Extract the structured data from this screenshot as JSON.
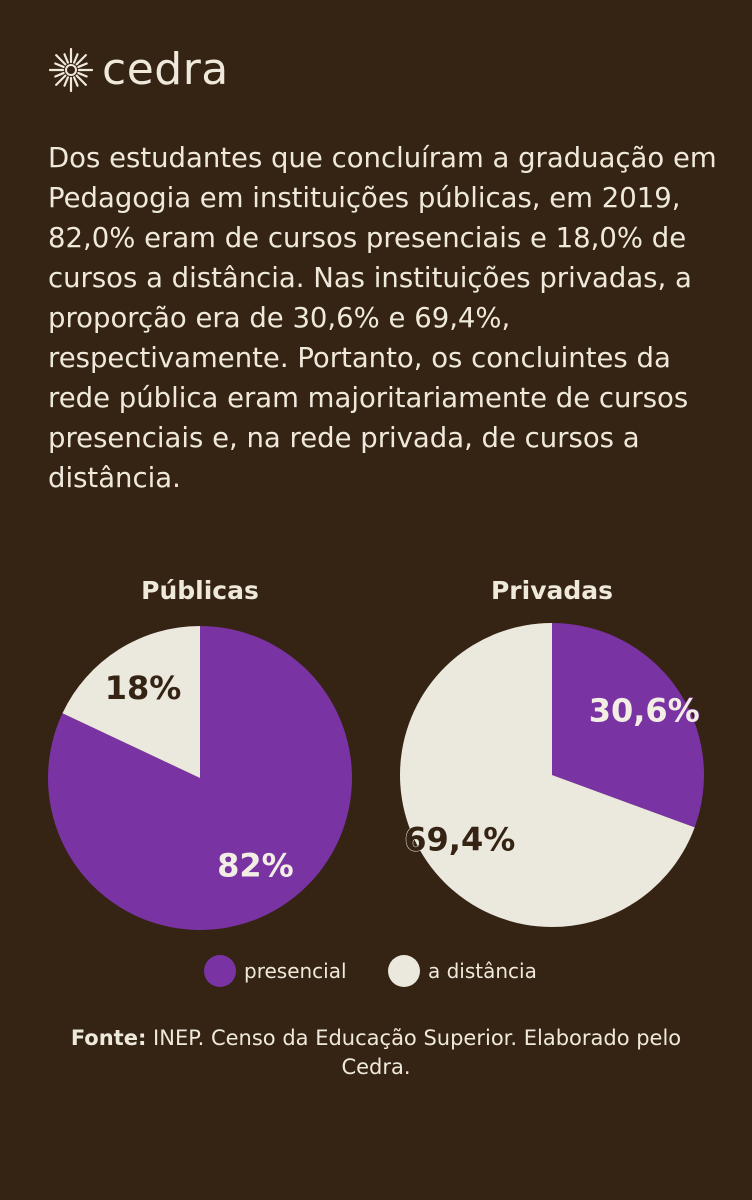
{
  "brand": {
    "name": "cedra",
    "logo_icon": "sunburst-icon"
  },
  "intro_text": "Dos estudantes que concluíram a graduação em Pedagogia em instituições públicas, em 2019, 82,0% eram de cursos presenciais e 18,0% de cursos a distância. Nas instituições privadas, a proporção era de 30,6% e 69,4%, respectivamente. Portanto, os concluintes da rede pública eram majoritariamente de cursos presenciais e, na rede privada, de cursos a distância.",
  "colors": {
    "background": "#352314",
    "presencial": "#7a33a3",
    "distancia": "#ebe8dd",
    "text": "#efe9dc"
  },
  "legend": [
    {
      "label": "presencial",
      "color": "#7a33a3"
    },
    {
      "label": "a distância",
      "color": "#ebe8dd"
    }
  ],
  "chart_data": [
    {
      "type": "pie",
      "title": "Públicas",
      "slices": [
        {
          "label": "presencial",
          "value": 82.0,
          "display": "82%",
          "color": "#7a33a3"
        },
        {
          "label": "a distância",
          "value": 18.0,
          "display": "18%",
          "color": "#ebe8dd"
        }
      ]
    },
    {
      "type": "pie",
      "title": "Privadas",
      "slices": [
        {
          "label": "presencial",
          "value": 30.6,
          "display": "30,6%",
          "color": "#7a33a3"
        },
        {
          "label": "a distância",
          "value": 69.4,
          "display": "69,4%",
          "color": "#ebe8dd"
        }
      ]
    }
  ],
  "source": {
    "label": "Fonte:",
    "text": " INEP. Censo da Educação Superior. Elaborado pelo Cedra."
  }
}
